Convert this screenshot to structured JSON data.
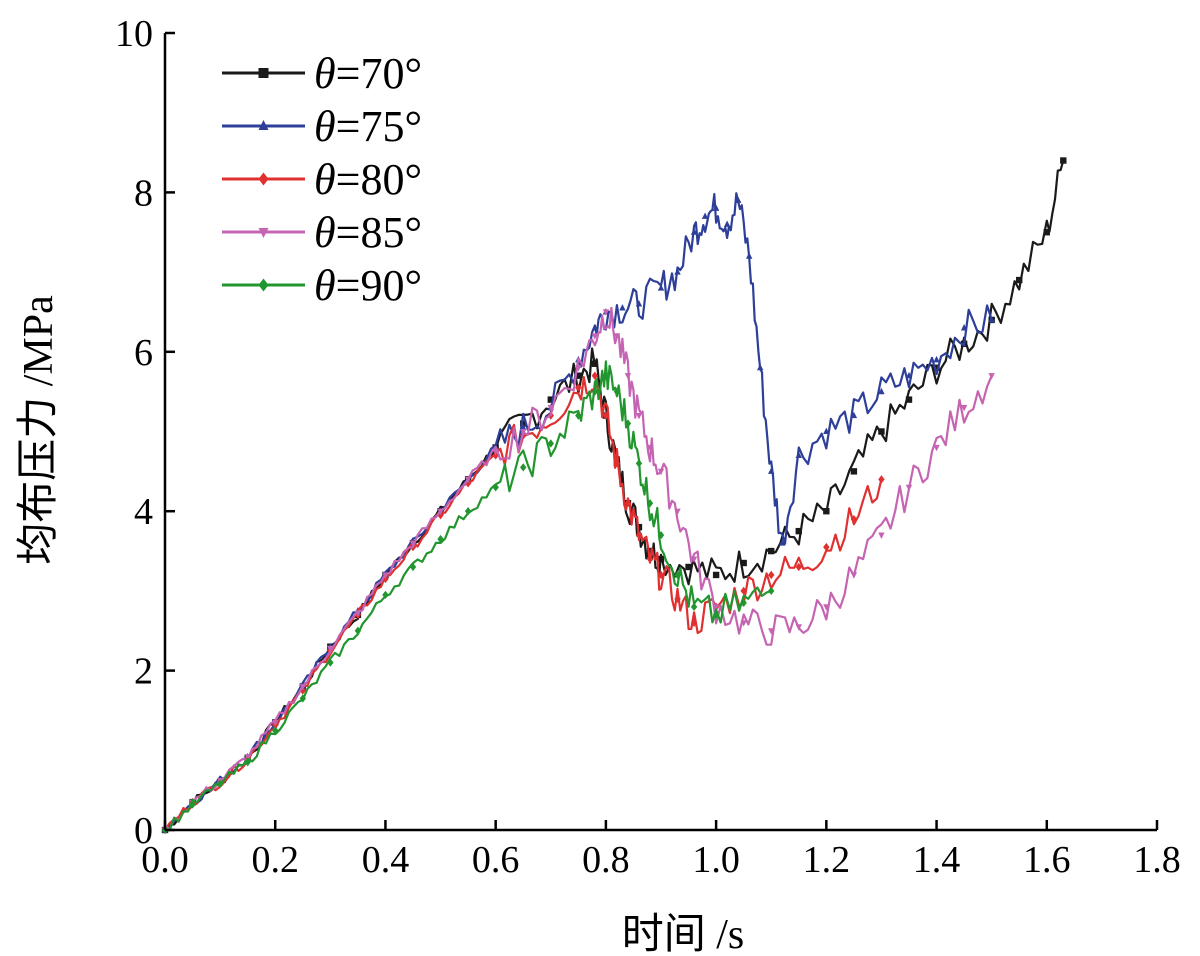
{
  "chart_data": {
    "type": "line",
    "title": "",
    "xlabel": "时间 /s",
    "ylabel": "均布压力 /MPa",
    "xlim": [
      0.0,
      1.8
    ],
    "ylim": [
      0,
      10
    ],
    "xticks": [
      0.0,
      0.2,
      0.4,
      0.6,
      0.8,
      1.0,
      1.2,
      1.4,
      1.6,
      1.8
    ],
    "xtick_labels": [
      "0.0",
      "0.2",
      "0.4",
      "0.6",
      "0.8",
      "1.0",
      "1.2",
      "1.4",
      "1.6",
      "1.8"
    ],
    "yticks": [
      0,
      2,
      4,
      6,
      8,
      10
    ],
    "ytick_labels": [
      "0",
      "2",
      "4",
      "6",
      "8",
      "10"
    ],
    "legend_position": "top-left",
    "series": [
      {
        "name": "θ=70°",
        "label_prefix": "θ",
        "label_value": "=70°",
        "color": "#1a1a1a",
        "marker": "square",
        "x": [
          0.0,
          0.05,
          0.1,
          0.15,
          0.2,
          0.25,
          0.3,
          0.35,
          0.4,
          0.45,
          0.5,
          0.55,
          0.6,
          0.65,
          0.7,
          0.75,
          0.78,
          0.8,
          0.82,
          0.84,
          0.86,
          0.88,
          0.9,
          0.95,
          1.0,
          1.05,
          1.1,
          1.15,
          1.2,
          1.25,
          1.3,
          1.35,
          1.4,
          1.45,
          1.5,
          1.55,
          1.6,
          1.63
        ],
        "y": [
          0.0,
          0.35,
          0.6,
          0.9,
          1.35,
          1.8,
          2.3,
          2.7,
          3.2,
          3.6,
          4.0,
          4.4,
          4.8,
          5.1,
          5.4,
          5.7,
          5.85,
          5.2,
          4.6,
          4.1,
          3.8,
          3.5,
          3.4,
          3.3,
          3.2,
          3.35,
          3.5,
          3.75,
          4.0,
          4.5,
          5.0,
          5.4,
          5.8,
          6.1,
          6.4,
          6.9,
          7.5,
          8.4
        ]
      },
      {
        "name": "θ=75°",
        "label_prefix": "θ",
        "label_value": "=75°",
        "color": "#2e3f9a",
        "marker": "triangle",
        "x": [
          0.0,
          0.05,
          0.1,
          0.15,
          0.2,
          0.25,
          0.3,
          0.35,
          0.4,
          0.45,
          0.5,
          0.55,
          0.6,
          0.65,
          0.7,
          0.75,
          0.78,
          0.8,
          0.83,
          0.86,
          0.9,
          0.93,
          0.96,
          0.98,
          1.0,
          1.02,
          1.04,
          1.06,
          1.08,
          1.1,
          1.12,
          1.15,
          1.2,
          1.25,
          1.3,
          1.35,
          1.4,
          1.45,
          1.5
        ],
        "y": [
          0.0,
          0.35,
          0.62,
          0.92,
          1.35,
          1.8,
          2.3,
          2.75,
          3.2,
          3.6,
          4.0,
          4.4,
          4.8,
          5.05,
          5.3,
          5.9,
          6.3,
          6.5,
          6.55,
          6.6,
          6.8,
          7.0,
          7.5,
          7.7,
          7.8,
          7.6,
          7.9,
          7.2,
          5.8,
          4.5,
          3.6,
          4.7,
          5.0,
          5.2,
          5.5,
          5.7,
          5.9,
          6.3,
          6.4
        ]
      },
      {
        "name": "θ=80°",
        "label_prefix": "θ",
        "label_value": "=80°",
        "color": "#e03030",
        "marker": "diamond",
        "x": [
          0.0,
          0.05,
          0.1,
          0.15,
          0.2,
          0.25,
          0.3,
          0.35,
          0.4,
          0.45,
          0.5,
          0.55,
          0.6,
          0.65,
          0.7,
          0.75,
          0.78,
          0.8,
          0.82,
          0.84,
          0.86,
          0.88,
          0.9,
          0.93,
          0.96,
          1.0,
          1.05,
          1.1,
          1.15,
          1.2,
          1.25,
          1.3
        ],
        "y": [
          0.0,
          0.35,
          0.6,
          0.9,
          1.32,
          1.75,
          2.25,
          2.7,
          3.15,
          3.55,
          3.95,
          4.35,
          4.7,
          4.95,
          5.2,
          5.55,
          5.7,
          5.2,
          4.6,
          4.1,
          3.7,
          3.4,
          3.2,
          2.9,
          2.6,
          2.8,
          3.0,
          3.2,
          3.3,
          3.55,
          3.9,
          4.4
        ]
      },
      {
        "name": "θ=85°",
        "label_prefix": "θ",
        "label_value": "=85°",
        "color": "#c664b4",
        "marker": "triangle-down",
        "x": [
          0.0,
          0.05,
          0.1,
          0.15,
          0.2,
          0.25,
          0.3,
          0.35,
          0.4,
          0.45,
          0.5,
          0.55,
          0.6,
          0.65,
          0.7,
          0.75,
          0.78,
          0.8,
          0.82,
          0.84,
          0.86,
          0.88,
          0.9,
          0.93,
          0.96,
          1.0,
          1.05,
          1.1,
          1.15,
          1.2,
          1.25,
          1.3,
          1.35,
          1.4,
          1.45,
          1.5
        ],
        "y": [
          0.0,
          0.35,
          0.62,
          0.92,
          1.35,
          1.8,
          2.28,
          2.72,
          3.2,
          3.6,
          4.0,
          4.4,
          4.75,
          5.0,
          5.3,
          5.8,
          6.2,
          6.5,
          6.2,
          5.7,
          5.2,
          4.8,
          4.5,
          4.0,
          3.4,
          2.8,
          2.6,
          2.5,
          2.55,
          2.8,
          3.2,
          3.7,
          4.3,
          4.8,
          5.3,
          5.7
        ]
      },
      {
        "name": "θ=90°",
        "label_prefix": "θ",
        "label_value": "=90°",
        "color": "#22962e",
        "marker": "diamond",
        "x": [
          0.0,
          0.05,
          0.1,
          0.15,
          0.2,
          0.25,
          0.3,
          0.35,
          0.4,
          0.45,
          0.5,
          0.55,
          0.6,
          0.65,
          0.7,
          0.75,
          0.78,
          0.8,
          0.82,
          0.84,
          0.86,
          0.88,
          0.9,
          0.93,
          0.96,
          1.0,
          1.05,
          1.1
        ],
        "y": [
          0.0,
          0.32,
          0.58,
          0.85,
          1.25,
          1.65,
          2.1,
          2.5,
          2.95,
          3.3,
          3.65,
          4.0,
          4.3,
          4.55,
          4.85,
          5.2,
          5.5,
          5.7,
          5.5,
          5.1,
          4.6,
          4.1,
          3.7,
          3.2,
          2.8,
          2.7,
          2.85,
          3.0
        ]
      }
    ]
  }
}
